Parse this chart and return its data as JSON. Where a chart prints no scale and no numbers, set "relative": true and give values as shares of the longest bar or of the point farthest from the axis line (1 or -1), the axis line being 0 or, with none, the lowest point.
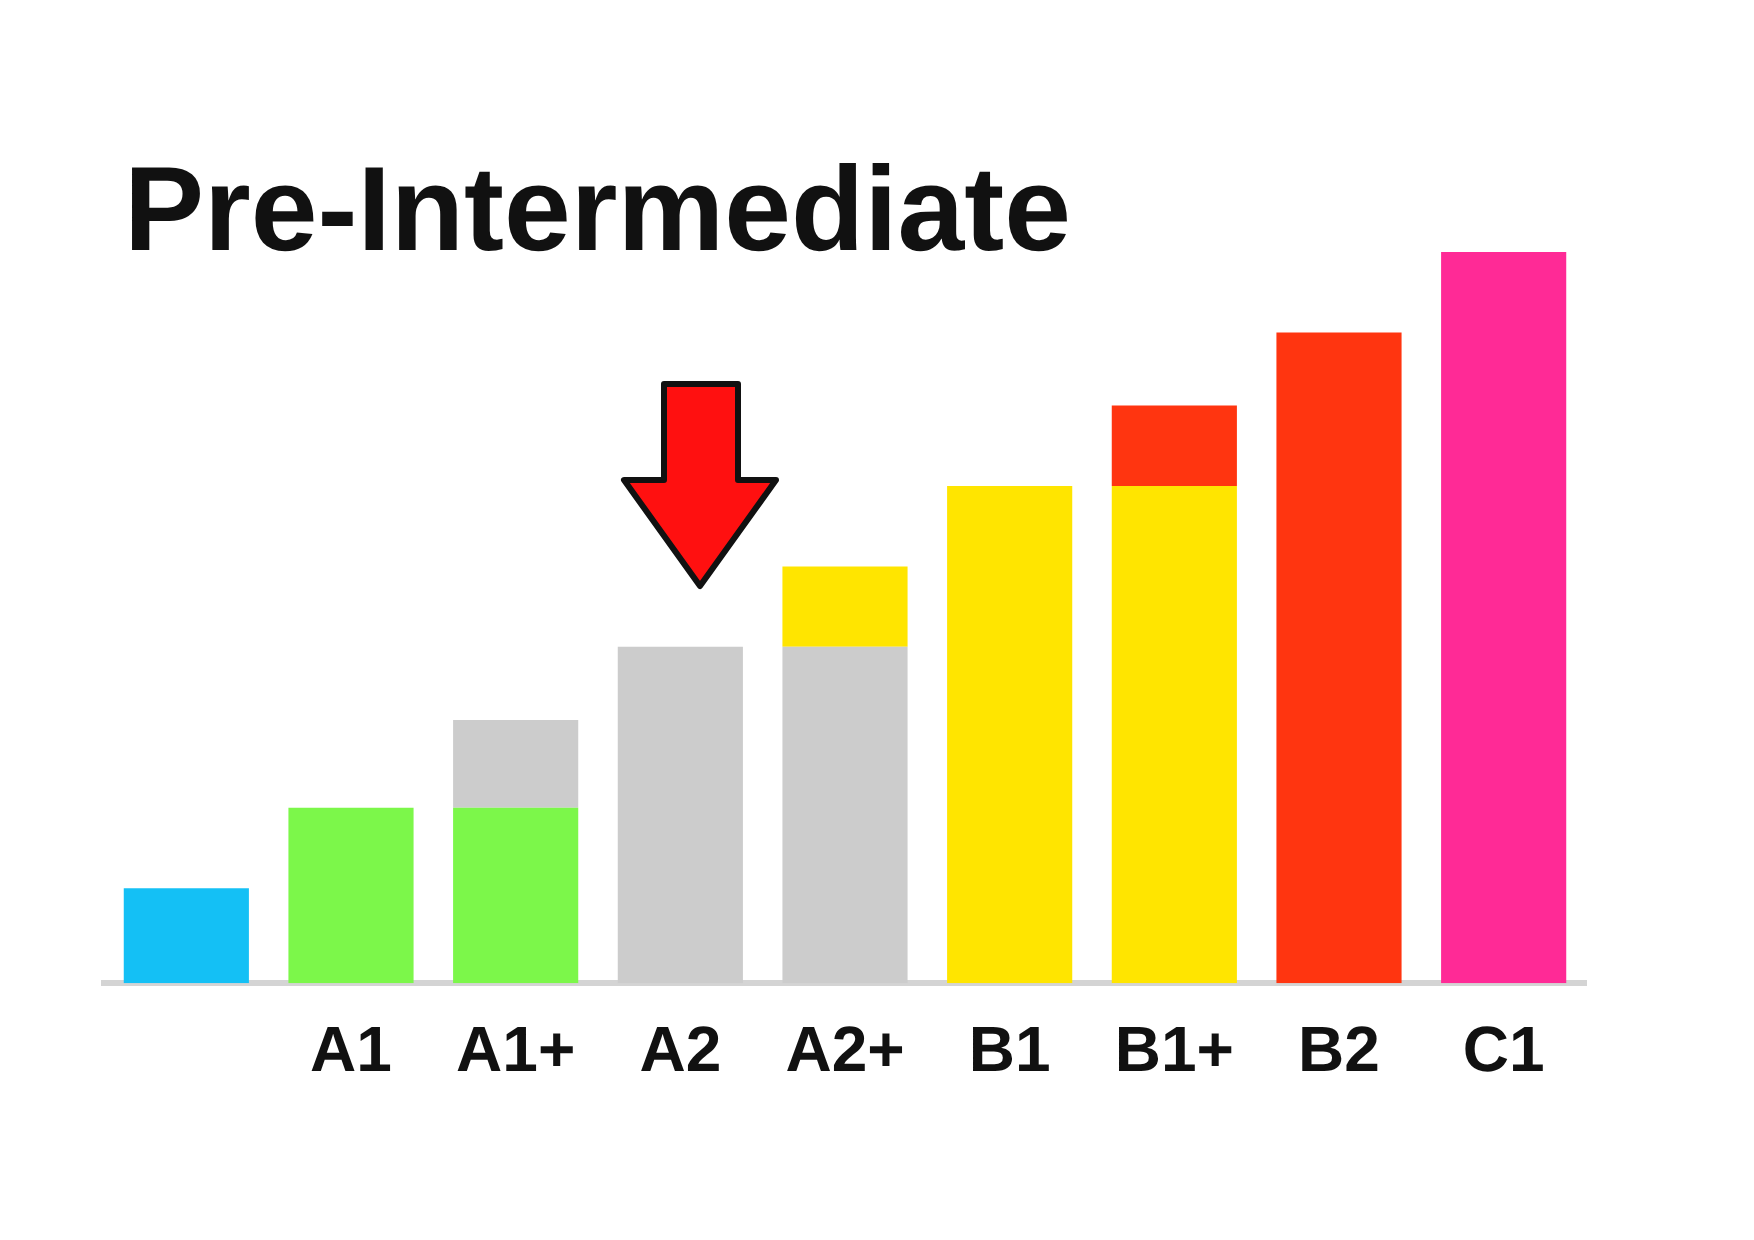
{
  "chart_data": {
    "type": "bar",
    "title": "Pre-Intermediate",
    "relative": true,
    "stacked": true,
    "categories": [
      null,
      "A1",
      "A1+",
      "A2",
      "A2+",
      "B1",
      "B1+",
      "B2",
      "C1"
    ],
    "series": [
      {
        "colors": [
          "#14c0f5",
          "#7cf74a",
          "#7cf74a",
          "#cccccc",
          "#cccccc",
          "#ffe500",
          "#ffe500",
          "#ff3510",
          "#ff2a96"
        ],
        "values": [
          0.13,
          0.24,
          0.24,
          0.46,
          0.46,
          0.68,
          0.68,
          0.89,
          1
        ]
      },
      {
        "colors": [
          "#cccccc",
          "#cccccc",
          "#cccccc",
          "#cccccc",
          "#ffe500",
          "#ffe500",
          "#ff3510",
          "#ff3510",
          "#ff3510"
        ],
        "values": [
          null,
          null,
          0.12,
          null,
          0.11,
          null,
          0.11,
          null,
          null
        ]
      }
    ]
  }
}
